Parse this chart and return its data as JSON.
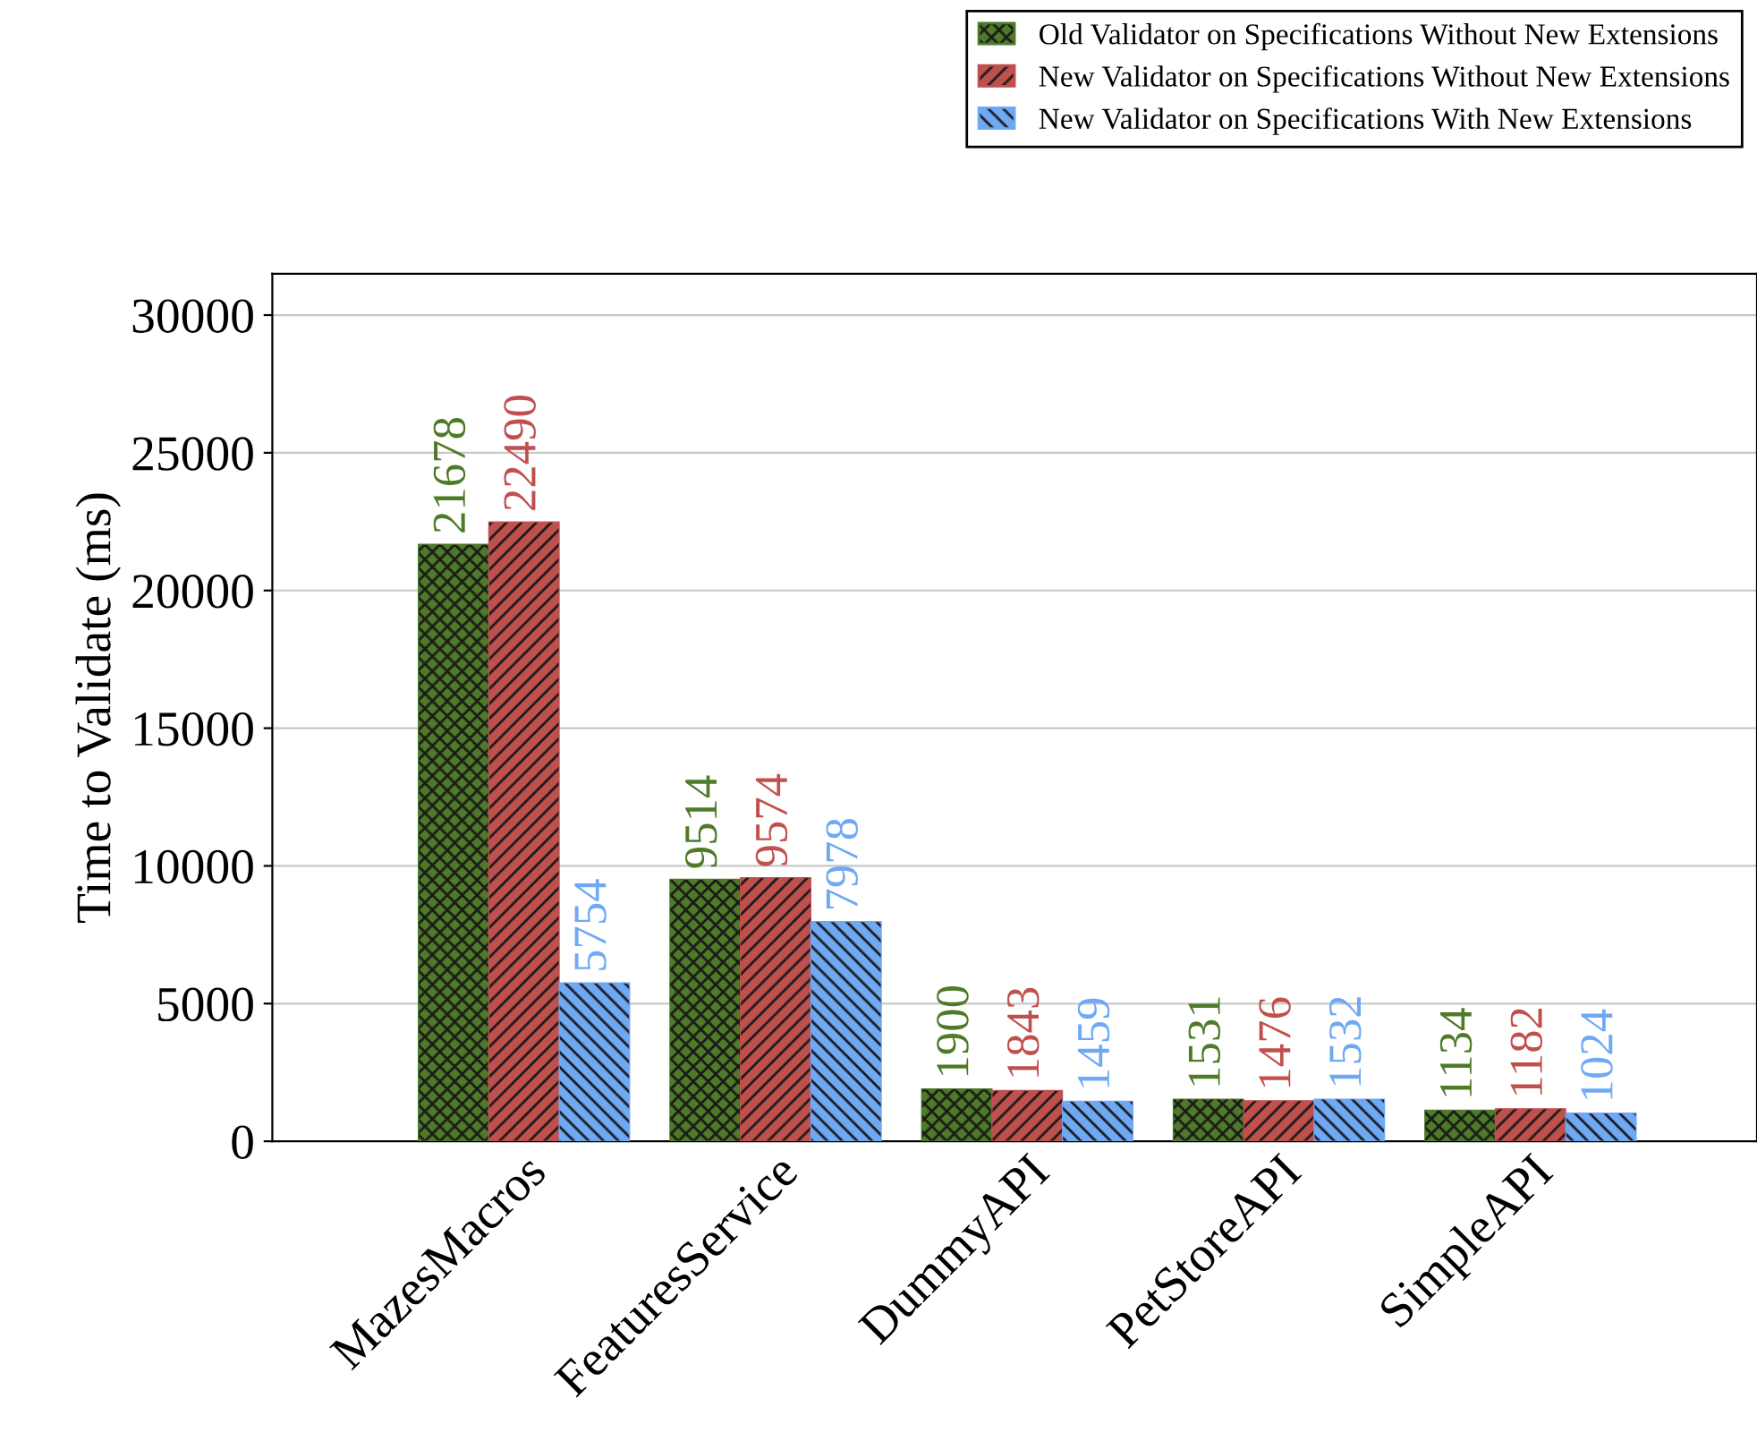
{
  "chart_data": {
    "type": "bar",
    "ylabel": "Time to Validate (ms)",
    "categories": [
      "MazesMacros",
      "FeaturesService",
      "DummyAPI",
      "PetStoreAPI",
      "SimpleAPI"
    ],
    "series": [
      {
        "name": "Old Validator on Specifications Without New Extensions",
        "color": "#4f7a28",
        "values": [
          21678,
          9514,
          1900,
          1531,
          1134
        ]
      },
      {
        "name": "New Validator on Specifications Without New Extensions",
        "color": "#c0504d",
        "values": [
          22490,
          9574,
          1843,
          1476,
          1182
        ]
      },
      {
        "name": "New Validator on Specifications With New Extensions",
        "color": "#6fa8f5",
        "values": [
          5754,
          7978,
          1459,
          1532,
          1024
        ]
      }
    ],
    "ylim": [
      0,
      31500
    ],
    "yticks": [
      0,
      5000,
      10000,
      15000,
      20000,
      25000,
      30000
    ],
    "grid": "y",
    "legend": "top right",
    "data_labels": true
  }
}
